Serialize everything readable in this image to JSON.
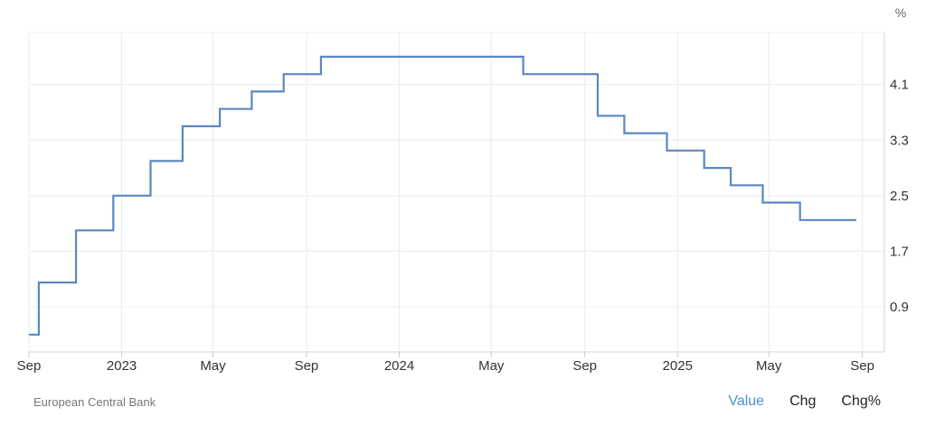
{
  "chart_data": {
    "type": "line",
    "step": true,
    "unit": "%",
    "x_ticks": [
      "Sep",
      "2023",
      "May",
      "Sep",
      "2024",
      "May",
      "Sep",
      "2025",
      "May",
      "Sep"
    ],
    "y_ticks": [
      "0.9",
      "1.7",
      "2.5",
      "3.3",
      "4.1"
    ],
    "ylim": [
      0.25,
      4.85
    ],
    "xlim": [
      "2022-09-01",
      "2025-09-30"
    ],
    "grid": true,
    "series": [
      {
        "color": "#5b87c2",
        "points": [
          {
            "x": "2022-09-01",
            "y": 0.5
          },
          {
            "x": "2022-09-14",
            "y": 1.25
          },
          {
            "x": "2022-11-02",
            "y": 2.0
          },
          {
            "x": "2022-12-21",
            "y": 2.5
          },
          {
            "x": "2023-02-08",
            "y": 3.0
          },
          {
            "x": "2023-03-22",
            "y": 3.5
          },
          {
            "x": "2023-05-10",
            "y": 3.75
          },
          {
            "x": "2023-06-21",
            "y": 4.0
          },
          {
            "x": "2023-08-02",
            "y": 4.25
          },
          {
            "x": "2023-09-20",
            "y": 4.5
          },
          {
            "x": "2024-06-12",
            "y": 4.25
          },
          {
            "x": "2024-09-18",
            "y": 3.65
          },
          {
            "x": "2024-10-23",
            "y": 3.4
          },
          {
            "x": "2024-12-18",
            "y": 3.15
          },
          {
            "x": "2025-02-05",
            "y": 2.9
          },
          {
            "x": "2025-03-12",
            "y": 2.65
          },
          {
            "x": "2025-04-23",
            "y": 2.4
          },
          {
            "x": "2025-06-11",
            "y": 2.15
          },
          {
            "x": "2025-08-24",
            "y": 2.15
          }
        ]
      }
    ]
  },
  "source": "European Central Bank",
  "toggles": {
    "value": "Value",
    "chg": "Chg",
    "chg_pct": "Chg%"
  }
}
